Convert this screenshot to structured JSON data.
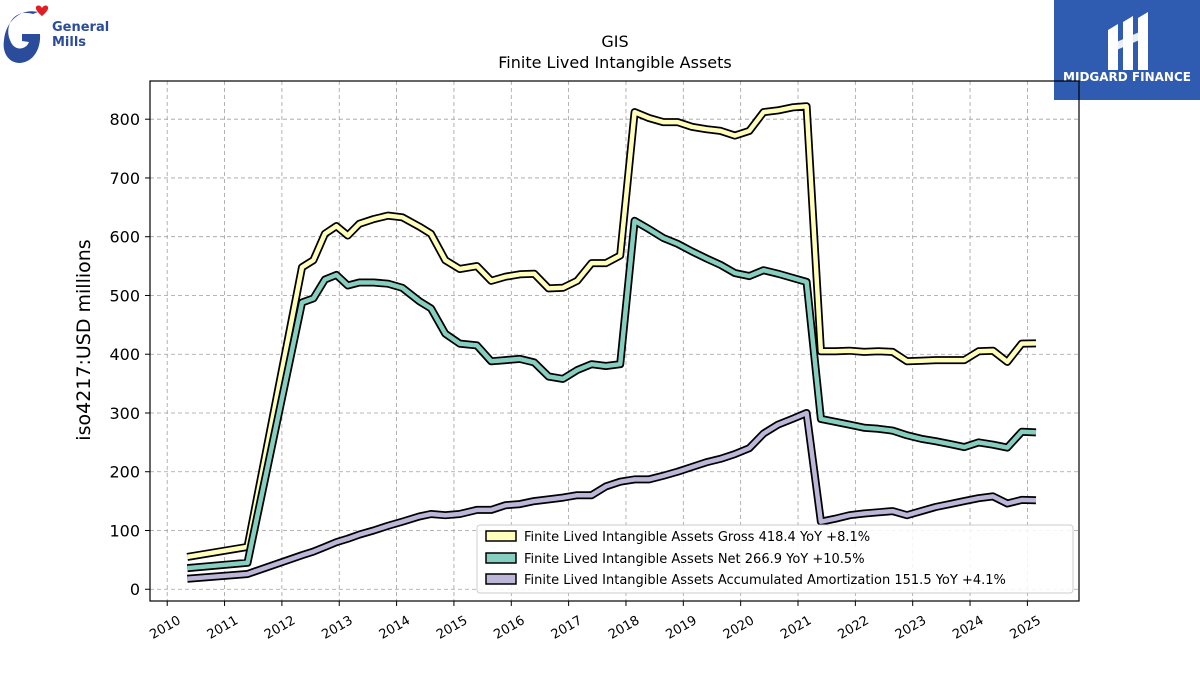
{
  "logos": {
    "general_mills": {
      "line1": "General",
      "line2": "Mills",
      "color": "#2a4c9b",
      "heart_color": "#e31b23"
    },
    "midgard": {
      "text": "MIDGARD FINANCE",
      "bg": "#2f5bb0"
    }
  },
  "colors": {
    "gross": "#ffffbb",
    "net": "#86cfc0",
    "amort": "#bcb6d8",
    "outline": "#000000"
  },
  "chart_data": {
    "type": "line",
    "title": "GIS",
    "subtitle": "Finite Lived Intangible Assets",
    "ylabel": "iso4217:USD  millions",
    "xlabel": "",
    "ylim": [
      -20,
      865
    ],
    "xlim": [
      2009.7,
      2025.9
    ],
    "yticks": [
      0,
      100,
      200,
      300,
      400,
      500,
      600,
      700,
      800
    ],
    "xticks": [
      "2010",
      "2011",
      "2012",
      "2013",
      "2014",
      "2015",
      "2016",
      "2017",
      "2018",
      "2019",
      "2020",
      "2021",
      "2022",
      "2023",
      "2024",
      "2025"
    ],
    "grid": true,
    "legend_position": "lower-right",
    "series": [
      {
        "name": "Finite Lived Intangible Assets Gross",
        "legend_label": "Finite Lived Intangible Assets Gross  418.4 YoY +8.1%",
        "color_key": "gross",
        "x": [
          2010.35,
          2011.4,
          2012.35,
          2012.55,
          2012.75,
          2012.95,
          2013.15,
          2013.35,
          2013.6,
          2013.85,
          2014.1,
          2014.4,
          2014.6,
          2014.85,
          2015.1,
          2015.4,
          2015.65,
          2015.9,
          2016.15,
          2016.4,
          2016.65,
          2016.9,
          2017.15,
          2017.4,
          2017.65,
          2017.9,
          2018.15,
          2018.4,
          2018.65,
          2018.9,
          2019.15,
          2019.4,
          2019.65,
          2019.9,
          2020.15,
          2020.4,
          2020.65,
          2020.9,
          2021.15,
          2021.4,
          2021.65,
          2021.9,
          2022.15,
          2022.4,
          2022.65,
          2022.9,
          2023.15,
          2023.4,
          2023.65,
          2023.9,
          2024.15,
          2024.4,
          2024.65,
          2024.9,
          2025.15
        ],
        "y": [
          55,
          72,
          548,
          560,
          605,
          618,
          602,
          622,
          630,
          636,
          633,
          617,
          605,
          560,
          545,
          550,
          525,
          532,
          536,
          537,
          512,
          513,
          525,
          555,
          555,
          568,
          812,
          802,
          795,
          795,
          787,
          783,
          780,
          772,
          780,
          812,
          815,
          820,
          822,
          405,
          405,
          406,
          404,
          405,
          404,
          388,
          389,
          390,
          390,
          390,
          405,
          406,
          387,
          418,
          418.4
        ]
      },
      {
        "name": "Finite Lived Intangible Assets Net",
        "legend_label": "Finite Lived Intangible Assets Net  266.9 YoY +10.5%",
        "color_key": "net",
        "x": [
          2010.35,
          2011.4,
          2012.35,
          2012.55,
          2012.75,
          2012.95,
          2013.15,
          2013.35,
          2013.6,
          2013.85,
          2014.1,
          2014.4,
          2014.6,
          2014.85,
          2015.1,
          2015.4,
          2015.65,
          2015.9,
          2016.15,
          2016.4,
          2016.65,
          2016.9,
          2017.15,
          2017.4,
          2017.65,
          2017.9,
          2018.15,
          2018.4,
          2018.65,
          2018.9,
          2019.15,
          2019.4,
          2019.65,
          2019.9,
          2020.15,
          2020.4,
          2020.65,
          2020.9,
          2021.15,
          2021.4,
          2021.65,
          2021.9,
          2022.15,
          2022.4,
          2022.65,
          2022.9,
          2023.15,
          2023.4,
          2023.65,
          2023.9,
          2024.15,
          2024.4,
          2024.65,
          2024.9,
          2025.15
        ],
        "y": [
          36,
          45,
          488,
          495,
          527,
          535,
          517,
          522,
          522,
          520,
          513,
          490,
          478,
          435,
          418,
          415,
          388,
          390,
          392,
          386,
          362,
          358,
          373,
          383,
          380,
          383,
          627,
          613,
          598,
          588,
          575,
          563,
          552,
          538,
          533,
          543,
          537,
          530,
          523,
          290,
          285,
          280,
          275,
          273,
          270,
          262,
          256,
          252,
          247,
          242,
          250,
          246,
          241,
          268,
          266.9
        ]
      },
      {
        "name": "Finite Lived Intangible Assets Accumulated Amortization",
        "legend_label": "Finite Lived Intangible Assets Accumulated Amortization  151.5 YoY +4.1%",
        "color_key": "amort",
        "x": [
          2010.35,
          2011.4,
          2012.35,
          2012.55,
          2012.75,
          2012.95,
          2013.15,
          2013.35,
          2013.6,
          2013.85,
          2014.1,
          2014.4,
          2014.6,
          2014.85,
          2015.1,
          2015.4,
          2015.65,
          2015.9,
          2016.15,
          2016.4,
          2016.65,
          2016.9,
          2017.15,
          2017.4,
          2017.65,
          2017.9,
          2018.15,
          2018.4,
          2018.65,
          2018.9,
          2019.15,
          2019.4,
          2019.65,
          2019.9,
          2020.15,
          2020.4,
          2020.65,
          2020.9,
          2021.15,
          2021.4,
          2021.65,
          2021.9,
          2022.15,
          2022.4,
          2022.65,
          2022.9,
          2023.15,
          2023.4,
          2023.65,
          2023.9,
          2024.15,
          2024.4,
          2024.65,
          2024.9,
          2025.15
        ],
        "y": [
          18,
          26,
          58,
          64,
          72,
          80,
          86,
          93,
          100,
          108,
          115,
          124,
          128,
          126,
          128,
          135,
          135,
          143,
          145,
          150,
          153,
          156,
          160,
          160,
          175,
          183,
          187,
          187,
          193,
          200,
          208,
          216,
          222,
          230,
          240,
          265,
          280,
          290,
          300,
          115,
          120,
          126,
          129,
          131,
          133,
          126,
          133,
          140,
          145,
          150,
          155,
          158,
          146,
          152,
          151.5
        ]
      }
    ]
  }
}
